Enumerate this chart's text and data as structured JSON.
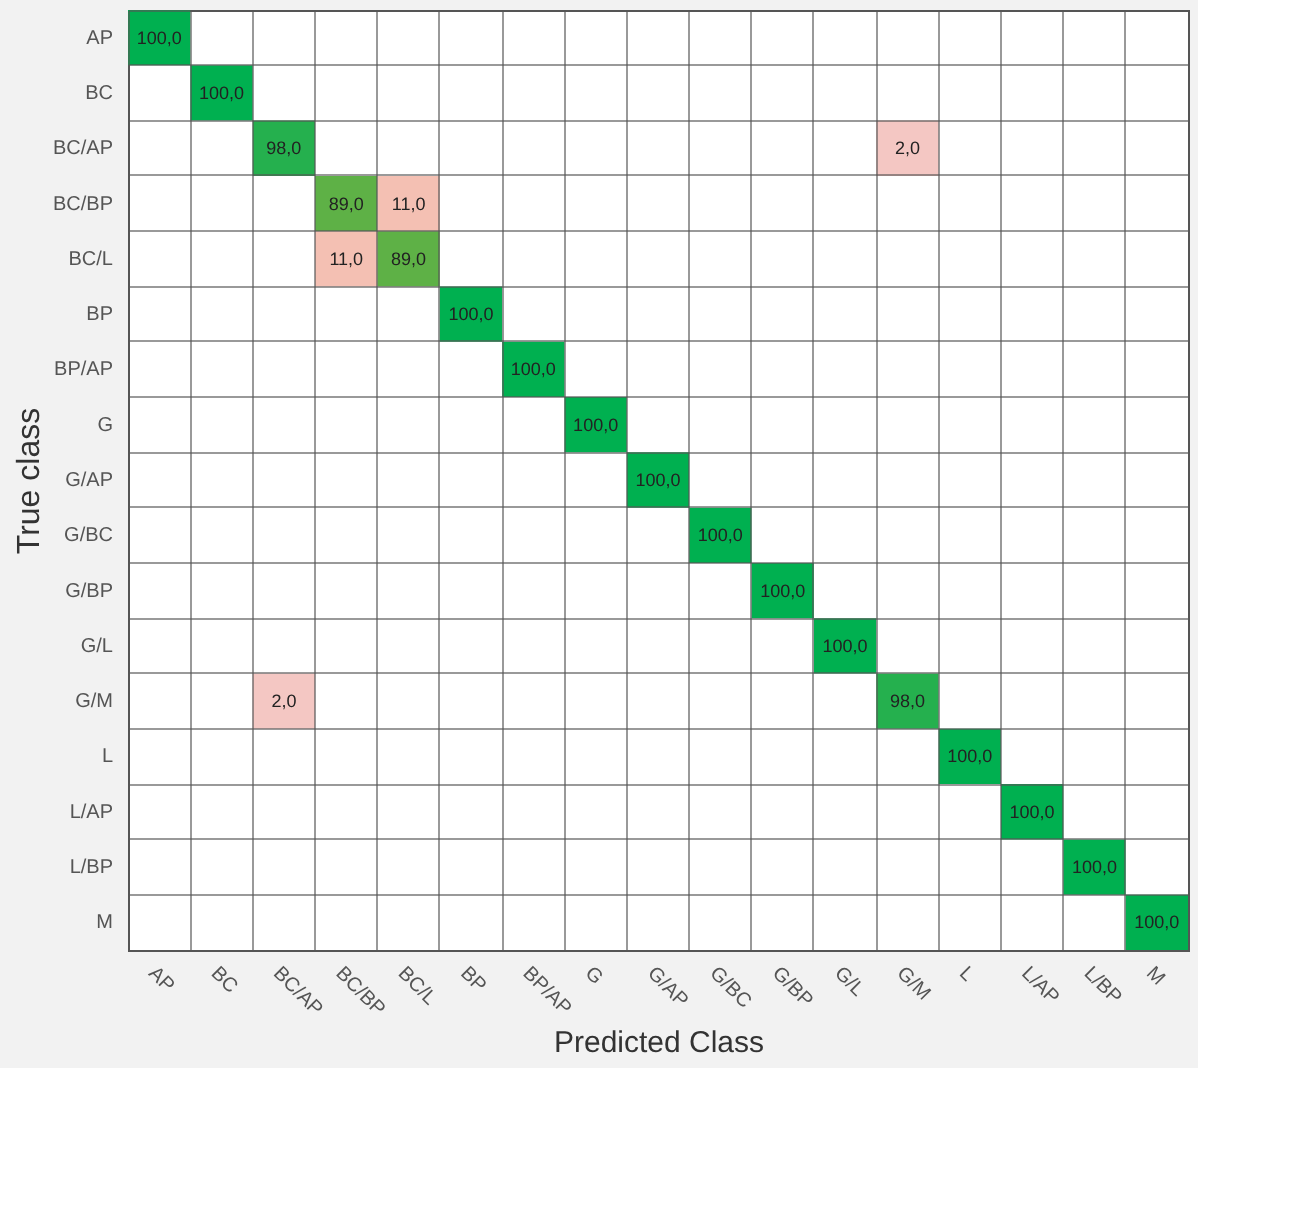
{
  "chart_data": {
    "type": "heatmap",
    "xlabel": "Predicted Class",
    "ylabel": "True class",
    "categories": [
      "AP",
      "BC",
      "BC/AP",
      "BC/BP",
      "BC/L",
      "BP",
      "BP/AP",
      "G",
      "G/AP",
      "G/BC",
      "G/BP",
      "G/L",
      "G/M",
      "L",
      "L/AP",
      "L/BP",
      "M"
    ],
    "y_categories": [
      "AP",
      "BC",
      "BC/AP",
      "BC/BP",
      "BC/L",
      "BP",
      "BP/AP",
      "G",
      "G/AP",
      "G/BC",
      "G/BP",
      "G/L",
      "G/M",
      "L",
      "L/AP",
      "L/BP",
      "M"
    ],
    "colors": [
      "#f4c7c3",
      "#00b050"
    ],
    "grid": true,
    "cells": [
      [
        100.0,
        null,
        null,
        null,
        null,
        null,
        null,
        null,
        null,
        null,
        null,
        null,
        null,
        null,
        null,
        null,
        null
      ],
      [
        null,
        100.0,
        null,
        null,
        null,
        null,
        null,
        null,
        null,
        null,
        null,
        null,
        null,
        null,
        null,
        null,
        null
      ],
      [
        null,
        null,
        98.0,
        null,
        null,
        null,
        null,
        null,
        null,
        null,
        null,
        null,
        2.0,
        null,
        null,
        null,
        null
      ],
      [
        null,
        null,
        null,
        89.0,
        11.0,
        null,
        null,
        null,
        null,
        null,
        null,
        null,
        null,
        null,
        null,
        null,
        null
      ],
      [
        null,
        null,
        null,
        11.0,
        89.0,
        null,
        null,
        null,
        null,
        null,
        null,
        null,
        null,
        null,
        null,
        null,
        null
      ],
      [
        null,
        null,
        null,
        null,
        null,
        100.0,
        null,
        null,
        null,
        null,
        null,
        null,
        null,
        null,
        null,
        null,
        null
      ],
      [
        null,
        null,
        null,
        null,
        null,
        null,
        100.0,
        null,
        null,
        null,
        null,
        null,
        null,
        null,
        null,
        null,
        null
      ],
      [
        null,
        null,
        null,
        null,
        null,
        null,
        null,
        100.0,
        null,
        null,
        null,
        null,
        null,
        null,
        null,
        null,
        null
      ],
      [
        null,
        null,
        null,
        null,
        null,
        null,
        null,
        null,
        100.0,
        null,
        null,
        null,
        null,
        null,
        null,
        null,
        null
      ],
      [
        null,
        null,
        null,
        null,
        null,
        null,
        null,
        null,
        null,
        100.0,
        null,
        null,
        null,
        null,
        null,
        null,
        null
      ],
      [
        null,
        null,
        null,
        null,
        null,
        null,
        null,
        null,
        null,
        null,
        100.0,
        null,
        null,
        null,
        null,
        null,
        null
      ],
      [
        null,
        null,
        null,
        null,
        null,
        null,
        null,
        null,
        null,
        null,
        null,
        100.0,
        null,
        null,
        null,
        null,
        null
      ],
      [
        null,
        null,
        2.0,
        null,
        null,
        null,
        null,
        null,
        null,
        null,
        null,
        null,
        98.0,
        null,
        null,
        null,
        null
      ],
      [
        null,
        null,
        null,
        null,
        null,
        null,
        null,
        null,
        null,
        null,
        null,
        null,
        null,
        100.0,
        null,
        null,
        null
      ],
      [
        null,
        null,
        null,
        null,
        null,
        null,
        null,
        null,
        null,
        null,
        null,
        null,
        null,
        null,
        100.0,
        null,
        null
      ],
      [
        null,
        null,
        null,
        null,
        null,
        null,
        null,
        null,
        null,
        null,
        null,
        null,
        null,
        null,
        null,
        100.0,
        null
      ],
      [
        null,
        null,
        null,
        null,
        null,
        null,
        null,
        null,
        null,
        null,
        null,
        null,
        null,
        null,
        null,
        null,
        100.0
      ]
    ],
    "cell_labels": [
      [
        "100,0",
        null,
        null,
        null,
        null,
        null,
        null,
        null,
        null,
        null,
        null,
        null,
        null,
        null,
        null,
        null,
        null
      ],
      [
        null,
        "100,0",
        null,
        null,
        null,
        null,
        null,
        null,
        null,
        null,
        null,
        null,
        null,
        null,
        null,
        null,
        null
      ],
      [
        null,
        null,
        "98,0",
        null,
        null,
        null,
        null,
        null,
        null,
        null,
        null,
        null,
        "2,0",
        null,
        null,
        null,
        null
      ],
      [
        null,
        null,
        null,
        "89,0",
        "11,0",
        null,
        null,
        null,
        null,
        null,
        null,
        null,
        null,
        null,
        null,
        null,
        null
      ],
      [
        null,
        null,
        null,
        "11,0",
        "89,0",
        null,
        null,
        null,
        null,
        null,
        null,
        null,
        null,
        null,
        null,
        null,
        null
      ],
      [
        null,
        null,
        null,
        null,
        null,
        "100,0",
        null,
        null,
        null,
        null,
        null,
        null,
        null,
        null,
        null,
        null,
        null
      ],
      [
        null,
        null,
        null,
        null,
        null,
        null,
        "100,0",
        null,
        null,
        null,
        null,
        null,
        null,
        null,
        null,
        null,
        null
      ],
      [
        null,
        null,
        null,
        null,
        null,
        null,
        null,
        "100,0",
        null,
        null,
        null,
        null,
        null,
        null,
        null,
        null,
        null
      ],
      [
        null,
        null,
        null,
        null,
        null,
        null,
        null,
        null,
        "100,0",
        null,
        null,
        null,
        null,
        null,
        null,
        null,
        null
      ],
      [
        null,
        null,
        null,
        null,
        null,
        null,
        null,
        null,
        null,
        "100,0",
        null,
        null,
        null,
        null,
        null,
        null,
        null
      ],
      [
        null,
        null,
        null,
        null,
        null,
        null,
        null,
        null,
        null,
        null,
        "100,0",
        null,
        null,
        null,
        null,
        null,
        null
      ],
      [
        null,
        null,
        null,
        null,
        null,
        null,
        null,
        null,
        null,
        null,
        null,
        "100,0",
        null,
        null,
        null,
        null,
        null
      ],
      [
        null,
        null,
        "2,0",
        null,
        null,
        null,
        null,
        null,
        null,
        null,
        null,
        null,
        "98,0",
        null,
        null,
        null,
        null
      ],
      [
        null,
        null,
        null,
        null,
        null,
        null,
        null,
        null,
        null,
        null,
        null,
        null,
        null,
        "100,0",
        null,
        null,
        null
      ],
      [
        null,
        null,
        null,
        null,
        null,
        null,
        null,
        null,
        null,
        null,
        null,
        null,
        null,
        null,
        "100,0",
        null,
        null
      ],
      [
        null,
        null,
        null,
        null,
        null,
        null,
        null,
        null,
        null,
        null,
        null,
        null,
        null,
        null,
        null,
        "100,0",
        null
      ],
      [
        null,
        null,
        null,
        null,
        null,
        null,
        null,
        null,
        null,
        null,
        null,
        null,
        null,
        null,
        null,
        null,
        "100,0"
      ]
    ]
  }
}
